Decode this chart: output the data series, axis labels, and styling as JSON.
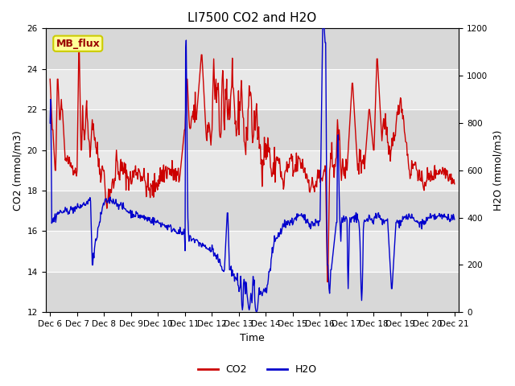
{
  "title": "LI7500 CO2 and H2O",
  "xlabel": "Time",
  "ylabel_left": "CO2 (mmol/m3)",
  "ylabel_right": "H2O (mmol/m3)",
  "ylim_left": [
    12,
    26
  ],
  "ylim_right": [
    0,
    1200
  ],
  "yticks_left": [
    12,
    14,
    16,
    18,
    20,
    22,
    24,
    26
  ],
  "yticks_right": [
    0,
    200,
    400,
    600,
    800,
    1000,
    1200
  ],
  "x_start": 5.83,
  "x_end": 21.17,
  "xtick_positions": [
    6,
    7,
    8,
    9,
    10,
    11,
    12,
    13,
    14,
    15,
    16,
    17,
    18,
    19,
    20,
    21
  ],
  "xtick_labels": [
    "Dec 6",
    "Dec 7",
    "Dec 8",
    "Dec 9",
    "Dec 10",
    "Dec 11",
    "Dec 12",
    "Dec 13",
    "Dec 14",
    "Dec 15",
    "Dec 16",
    "Dec 17",
    "Dec 18",
    "Dec 19",
    "Dec 20",
    "Dec 21"
  ],
  "co2_color": "#cc0000",
  "h2o_color": "#0000cc",
  "band_color_dark": "#d8d8d8",
  "band_color_light": "#e8e8e8",
  "annotation_text": "MB_flux",
  "annotation_bg": "#ffff99",
  "annotation_border": "#cccc00",
  "legend_co2": "CO2",
  "legend_h2o": "H2O",
  "linewidth": 1.0,
  "title_fontsize": 11,
  "axis_fontsize": 9,
  "tick_fontsize": 7.5
}
